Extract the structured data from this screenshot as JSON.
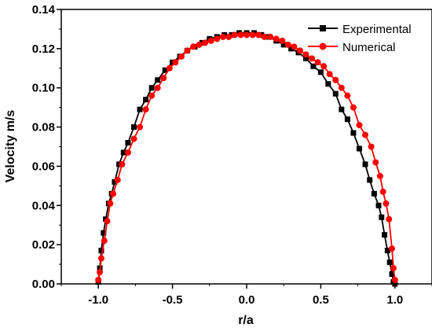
{
  "chart_data": {
    "type": "line",
    "title": "",
    "xlabel": "r/a",
    "ylabel": "Velocity m/s",
    "xlim": [
      -1.25,
      1.25
    ],
    "ylim": [
      0,
      0.14
    ],
    "x_ticks": [
      -1.0,
      -0.5,
      0.0,
      0.5,
      1.0
    ],
    "x_tick_labels": [
      "-1.0",
      "-0.5",
      "0.0",
      "0.5",
      "1.0"
    ],
    "y_ticks": [
      0.0,
      0.02,
      0.04,
      0.06,
      0.08,
      0.1,
      0.12,
      0.14
    ],
    "y_tick_labels": [
      "0.00",
      "0.02",
      "0.04",
      "0.06",
      "0.08",
      "0.10",
      "0.12",
      "0.14"
    ],
    "grid": false,
    "legend_position": "top-right",
    "series": [
      {
        "name": "Experimental",
        "color": "#000000",
        "marker": "square",
        "x": [
          -1.0,
          -0.99,
          -0.98,
          -0.965,
          -0.95,
          -0.93,
          -0.91,
          -0.89,
          -0.86,
          -0.83,
          -0.8,
          -0.76,
          -0.72,
          -0.68,
          -0.64,
          -0.6,
          -0.55,
          -0.5,
          -0.45,
          -0.4,
          -0.35,
          -0.3,
          -0.25,
          -0.2,
          -0.15,
          -0.1,
          -0.05,
          0.0,
          0.05,
          0.1,
          0.15,
          0.2,
          0.25,
          0.3,
          0.35,
          0.4,
          0.45,
          0.5,
          0.55,
          0.6,
          0.64,
          0.68,
          0.72,
          0.76,
          0.8,
          0.83,
          0.86,
          0.89,
          0.91,
          0.93,
          0.95,
          0.965,
          0.98,
          0.99,
          1.0
        ],
        "y": [
          0.001,
          0.008,
          0.017,
          0.026,
          0.033,
          0.041,
          0.046,
          0.052,
          0.061,
          0.067,
          0.072,
          0.08,
          0.089,
          0.094,
          0.1,
          0.104,
          0.109,
          0.113,
          0.116,
          0.119,
          0.121,
          0.123,
          0.125,
          0.126,
          0.127,
          0.127,
          0.128,
          0.128,
          0.128,
          0.127,
          0.126,
          0.124,
          0.122,
          0.12,
          0.118,
          0.115,
          0.111,
          0.108,
          0.102,
          0.097,
          0.089,
          0.084,
          0.077,
          0.069,
          0.061,
          0.053,
          0.046,
          0.04,
          0.034,
          0.025,
          0.017,
          0.011,
          0.005,
          0.001,
          0.0
        ]
      },
      {
        "name": "Numerical",
        "color": "#ff0000",
        "marker": "circle",
        "x": [
          -1.0,
          -0.99,
          -0.98,
          -0.96,
          -0.94,
          -0.92,
          -0.9,
          -0.87,
          -0.84,
          -0.8,
          -0.76,
          -0.72,
          -0.68,
          -0.64,
          -0.6,
          -0.56,
          -0.52,
          -0.48,
          -0.44,
          -0.4,
          -0.36,
          -0.32,
          -0.28,
          -0.24,
          -0.2,
          -0.16,
          -0.12,
          -0.08,
          -0.04,
          0.0,
          0.04,
          0.08,
          0.12,
          0.16,
          0.2,
          0.24,
          0.28,
          0.32,
          0.36,
          0.4,
          0.44,
          0.48,
          0.52,
          0.56,
          0.6,
          0.64,
          0.68,
          0.72,
          0.76,
          0.8,
          0.84,
          0.87,
          0.9,
          0.92,
          0.94,
          0.96,
          0.98,
          0.99,
          1.0
        ],
        "y": [
          0.002,
          0.006,
          0.013,
          0.022,
          0.032,
          0.041,
          0.046,
          0.053,
          0.061,
          0.067,
          0.074,
          0.08,
          0.089,
          0.096,
          0.1,
          0.105,
          0.11,
          0.113,
          0.116,
          0.119,
          0.121,
          0.122,
          0.123,
          0.124,
          0.125,
          0.126,
          0.126,
          0.127,
          0.127,
          0.127,
          0.127,
          0.127,
          0.126,
          0.126,
          0.125,
          0.124,
          0.122,
          0.121,
          0.119,
          0.117,
          0.115,
          0.113,
          0.111,
          0.107,
          0.104,
          0.1,
          0.096,
          0.09,
          0.081,
          0.076,
          0.07,
          0.062,
          0.055,
          0.047,
          0.041,
          0.033,
          0.018,
          0.008,
          0.002
        ]
      }
    ]
  }
}
